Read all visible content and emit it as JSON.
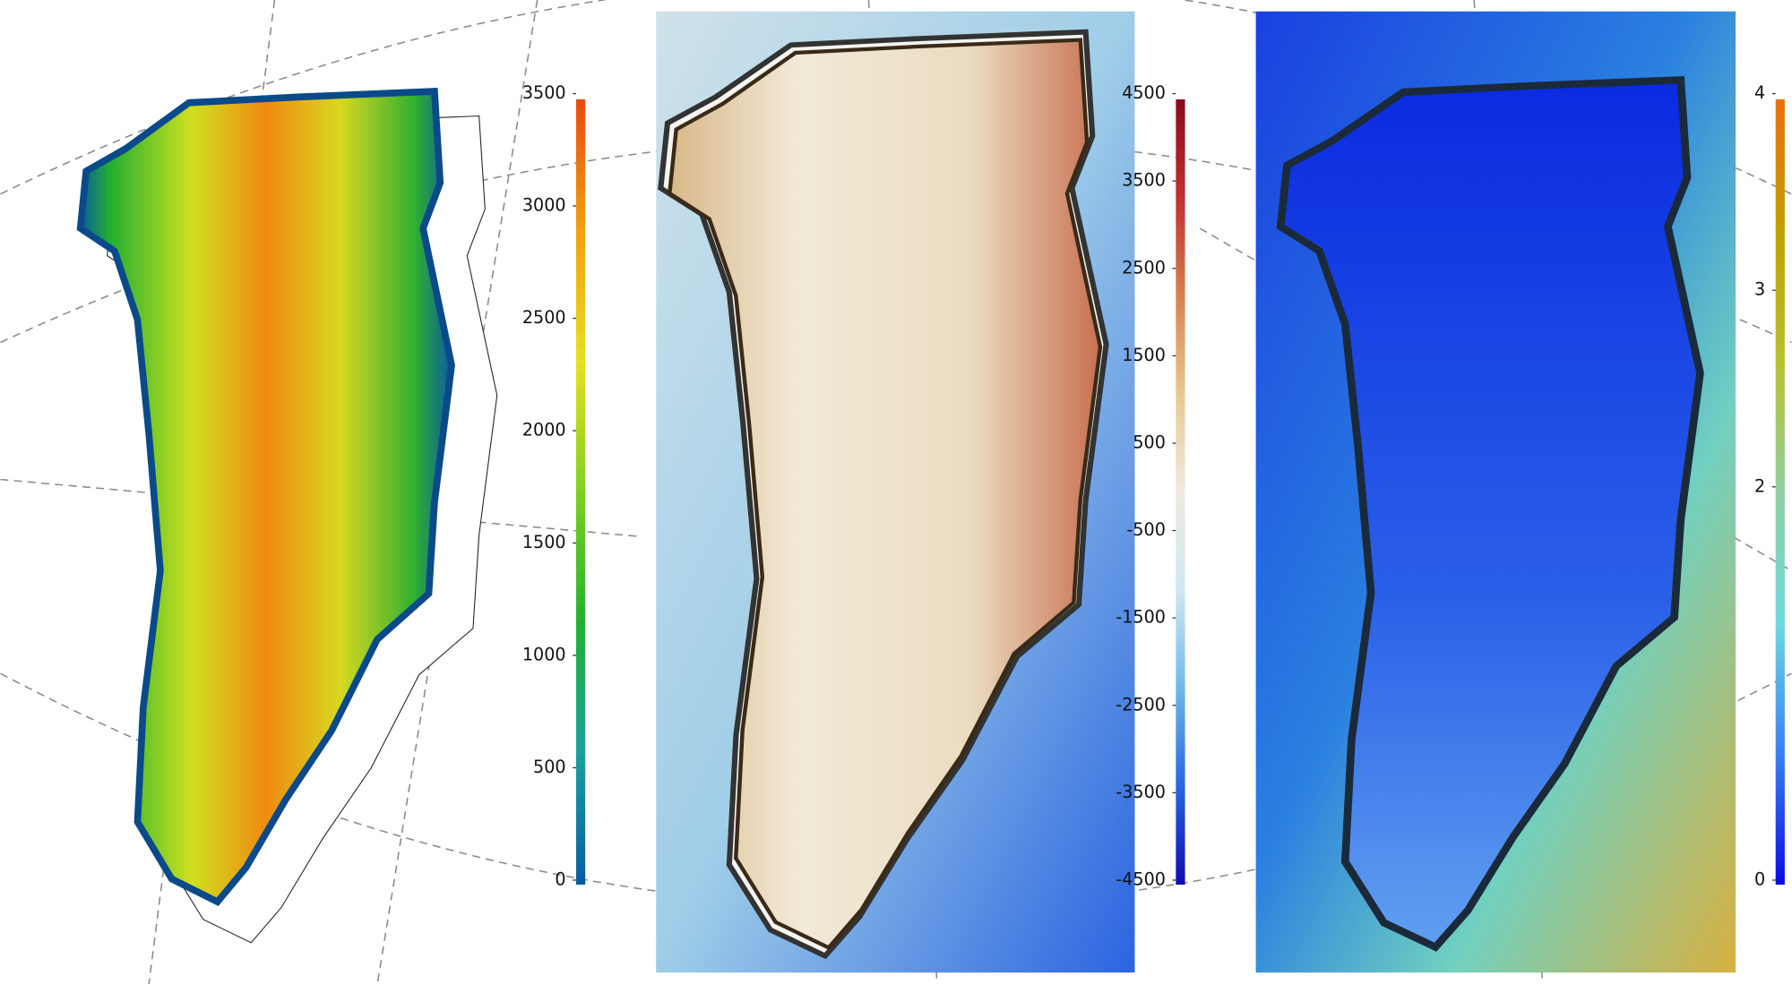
{
  "panels": [
    {
      "colorbar": {
        "lim": [
          0,
          3500
        ],
        "ticks": [
          0,
          500,
          1000,
          1500,
          2000,
          2500,
          3000,
          3500
        ],
        "colormap": [
          "#0a5c9e",
          "#1aa0a0",
          "#22b030",
          "#7fd020",
          "#e6e020",
          "#f0a010",
          "#e84a10"
        ]
      }
    },
    {
      "colorbar": {
        "lim": [
          -4500,
          4500
        ],
        "ticks": [
          -4500,
          -3500,
          -2500,
          -1500,
          -500,
          500,
          1500,
          2500,
          3500,
          4500
        ],
        "colormap": [
          "#0c0cb0",
          "#2a64e0",
          "#70b8ea",
          "#cfe8f0",
          "#eeeae0",
          "#e8c890",
          "#d88050",
          "#c03030",
          "#8a0a1a"
        ]
      }
    },
    {
      "colorbar": {
        "lim": [
          0,
          4
        ],
        "ticks": [
          0,
          2,
          3,
          4
        ],
        "colormap": [
          "#0a0ae8",
          "#3a80f0",
          "#70d8e0",
          "#90d0a0",
          "#b8c030",
          "#c0a000",
          "#e87010"
        ]
      }
    }
  ]
}
